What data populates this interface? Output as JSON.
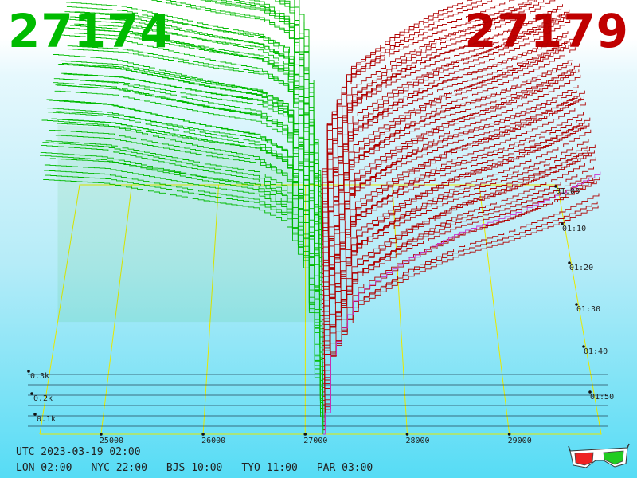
{
  "header": {
    "bid_price": "27174",
    "ask_price": "27179",
    "bid_color": "#00bb00",
    "ask_color": "#c00000"
  },
  "footer": {
    "utc": "UTC 2023-03-19 02:00",
    "cities": [
      "LON 02:00",
      "NYC 22:00",
      "BJS 10:00",
      "TYO 11:00",
      "PAR 03:00"
    ]
  },
  "icons": {
    "glasses": "3d-glasses-icon"
  },
  "chart_data": {
    "type": "area",
    "kind": "3d order book depth chart",
    "x_ticks": [
      25000,
      26000,
      27000,
      28000,
      29000
    ],
    "x_tick_labels": [
      "25000",
      "26000",
      "27000",
      "28000",
      "29000"
    ],
    "depth_ticks": [
      "0.1k",
      "0.2k",
      "0.3k"
    ],
    "time_ticks": [
      "01:00",
      "01:10",
      "01:20",
      "01:30",
      "01:40",
      "01:50"
    ],
    "xlim": [
      24400,
      29900
    ],
    "mid_price": 27176,
    "colors": {
      "bids": "#00bb00",
      "asks": "#b00000",
      "latest_asks": "#cc33cc",
      "grid": "#e8e800"
    },
    "snapshots": 60,
    "series": [
      {
        "name": "bids",
        "color": "#00bb00",
        "points": [
          [
            24400,
            330
          ],
          [
            25000,
            325
          ],
          [
            26000,
            300
          ],
          [
            26500,
            290
          ],
          [
            26800,
            270
          ],
          [
            27000,
            200
          ],
          [
            27100,
            60
          ],
          [
            27176,
            0
          ]
        ]
      },
      {
        "name": "asks",
        "color": "#b00000",
        "points": [
          [
            27176,
            0
          ],
          [
            27250,
            90
          ],
          [
            27500,
            160
          ],
          [
            28000,
            200
          ],
          [
            28500,
            230
          ],
          [
            29000,
            250
          ],
          [
            29500,
            275
          ],
          [
            29900,
            300
          ]
        ]
      }
    ]
  }
}
